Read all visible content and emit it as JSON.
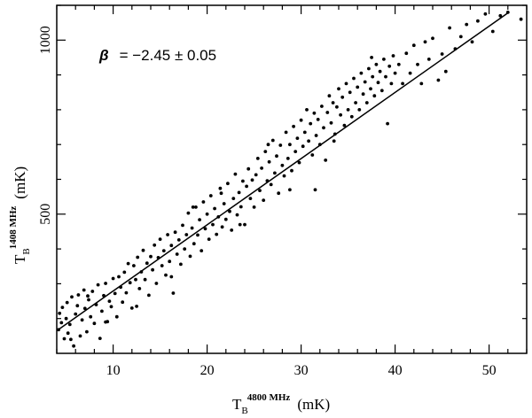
{
  "chart_data": {
    "type": "scatter",
    "xlim": [
      4,
      54
    ],
    "ylim": [
      100,
      1100
    ],
    "xticks": [
      10,
      20,
      30,
      40,
      50
    ],
    "yticks": [
      500,
      1000
    ],
    "xlabel": {
      "base": "T",
      "sub": "B",
      "sup": "4800 MHz",
      "unit": "(mK)"
    },
    "ylabel": {
      "base": "T",
      "sub": "B",
      "sup": "1408 MHz",
      "unit": "(mK)"
    },
    "annotation": {
      "symbol": "β",
      "text": "= −2.45 ± 0.05"
    },
    "fit_line": {
      "x": [
        4,
        52
      ],
      "y": [
        165,
        1078
      ]
    },
    "grid": false,
    "legend": "none",
    "series": [
      {
        "points": [
          [
            4.2,
            168
          ],
          [
            4.3,
            215
          ],
          [
            4.5,
            188
          ],
          [
            4.6,
            232
          ],
          [
            4.8,
            142
          ],
          [
            5.0,
            200
          ],
          [
            5.1,
            246
          ],
          [
            5.2,
            158
          ],
          [
            5.4,
            183
          ],
          [
            5.6,
            262
          ],
          [
            5.8,
            121
          ],
          [
            6.0,
            213
          ],
          [
            6.2,
            237
          ],
          [
            6.3,
            268
          ],
          [
            6.5,
            150
          ],
          [
            6.7,
            196
          ],
          [
            6.9,
            282
          ],
          [
            7.0,
            229
          ],
          [
            7.2,
            162
          ],
          [
            7.4,
            254
          ],
          [
            7.6,
            205
          ],
          [
            7.8,
            278
          ],
          [
            8.0,
            186
          ],
          [
            8.2,
            240
          ],
          [
            8.4,
            297
          ],
          [
            8.6,
            143
          ],
          [
            8.8,
            221
          ],
          [
            9.0,
            266
          ],
          [
            9.2,
            301
          ],
          [
            9.4,
            191
          ],
          [
            9.6,
            250
          ],
          [
            9.8,
            234
          ],
          [
            10.0,
            315
          ],
          [
            10.2,
            272
          ],
          [
            10.4,
            205
          ],
          [
            10.6,
            320
          ],
          [
            10.8,
            290
          ],
          [
            11.0,
            247
          ],
          [
            11.2,
            333
          ],
          [
            11.4,
            274
          ],
          [
            11.6,
            358
          ],
          [
            11.8,
            303
          ],
          [
            12.0,
            230
          ],
          [
            12.2,
            352
          ],
          [
            12.4,
            312
          ],
          [
            12.6,
            376
          ],
          [
            12.8,
            286
          ],
          [
            13.0,
            334
          ],
          [
            13.2,
            396
          ],
          [
            13.4,
            312
          ],
          [
            13.6,
            359
          ],
          [
            13.8,
            267
          ],
          [
            14.0,
            378
          ],
          [
            14.2,
            340
          ],
          [
            14.4,
            411
          ],
          [
            14.6,
            301
          ],
          [
            14.8,
            375
          ],
          [
            15.0,
            428
          ],
          [
            15.2,
            352
          ],
          [
            15.4,
            395
          ],
          [
            15.6,
            325
          ],
          [
            15.8,
            441
          ],
          [
            16.0,
            364
          ],
          [
            16.2,
            410
          ],
          [
            16.4,
            273
          ],
          [
            16.6,
            448
          ],
          [
            16.8,
            385
          ],
          [
            17.0,
            426
          ],
          [
            17.2,
            356
          ],
          [
            17.4,
            468
          ],
          [
            17.6,
            400
          ],
          [
            17.8,
            441
          ],
          [
            18.0,
            503
          ],
          [
            18.2,
            379
          ],
          [
            18.4,
            460
          ],
          [
            18.6,
            415
          ],
          [
            18.8,
            520
          ],
          [
            19.0,
            440
          ],
          [
            19.2,
            484
          ],
          [
            19.4,
            395
          ],
          [
            19.6,
            535
          ],
          [
            19.8,
            458
          ],
          [
            20.0,
            500
          ],
          [
            20.2,
            428
          ],
          [
            20.4,
            553
          ],
          [
            20.6,
            470
          ],
          [
            20.8,
            516
          ],
          [
            21.0,
            442
          ],
          [
            21.2,
            492
          ],
          [
            21.4,
            574
          ],
          [
            21.6,
            463
          ],
          [
            21.8,
            530
          ],
          [
            22.0,
            485
          ],
          [
            22.2,
            588
          ],
          [
            22.4,
            508
          ],
          [
            22.6,
            454
          ],
          [
            22.8,
            545
          ],
          [
            23.0,
            615
          ],
          [
            23.2,
            498
          ],
          [
            23.4,
            562
          ],
          [
            23.6,
            521
          ],
          [
            23.8,
            595
          ],
          [
            24.0,
            470
          ],
          [
            24.2,
            580
          ],
          [
            24.4,
            630
          ],
          [
            24.6,
            545
          ],
          [
            24.8,
            598
          ],
          [
            25.0,
            520
          ],
          [
            25.2,
            613
          ],
          [
            25.4,
            660
          ],
          [
            25.6,
            568
          ],
          [
            25.8,
            632
          ],
          [
            26.0,
            540
          ],
          [
            26.2,
            680
          ],
          [
            26.4,
            596
          ],
          [
            26.6,
            650
          ],
          [
            26.8,
            585
          ],
          [
            27.0,
            712
          ],
          [
            27.2,
            618
          ],
          [
            27.4,
            667
          ],
          [
            27.6,
            560
          ],
          [
            27.8,
            698
          ],
          [
            28.0,
            640
          ],
          [
            28.2,
            610
          ],
          [
            28.4,
            735
          ],
          [
            28.6,
            660
          ],
          [
            28.8,
            700
          ],
          [
            29.0,
            625
          ],
          [
            29.2,
            752
          ],
          [
            29.4,
            680
          ],
          [
            29.6,
            718
          ],
          [
            29.8,
            648
          ],
          [
            30.0,
            770
          ],
          [
            30.2,
            695
          ],
          [
            30.4,
            735
          ],
          [
            30.6,
            800
          ],
          [
            30.8,
            710
          ],
          [
            31.0,
            760
          ],
          [
            31.2,
            670
          ],
          [
            31.4,
            790
          ],
          [
            31.6,
            726
          ],
          [
            31.8,
            772
          ],
          [
            32.0,
            700
          ],
          [
            32.2,
            810
          ],
          [
            32.4,
            748
          ],
          [
            32.6,
            655
          ],
          [
            32.8,
            792
          ],
          [
            33.0,
            840
          ],
          [
            33.2,
            762
          ],
          [
            33.4,
            820
          ],
          [
            33.6,
            730
          ],
          [
            33.8,
            808
          ],
          [
            34.0,
            860
          ],
          [
            34.2,
            785
          ],
          [
            34.4,
            836
          ],
          [
            34.6,
            755
          ],
          [
            34.8,
            875
          ],
          [
            35.0,
            800
          ],
          [
            35.2,
            850
          ],
          [
            35.4,
            780
          ],
          [
            35.6,
            890
          ],
          [
            35.8,
            820
          ],
          [
            36.0,
            865
          ],
          [
            36.2,
            800
          ],
          [
            36.4,
            905
          ],
          [
            36.6,
            845
          ],
          [
            36.8,
            880
          ],
          [
            37.0,
            820
          ],
          [
            37.2,
            918
          ],
          [
            37.4,
            860
          ],
          [
            37.6,
            895
          ],
          [
            37.8,
            840
          ],
          [
            38.0,
            930
          ],
          [
            38.2,
            878
          ],
          [
            38.4,
            910
          ],
          [
            38.6,
            855
          ],
          [
            38.8,
            945
          ],
          [
            39.0,
            895
          ],
          [
            39.2,
            760
          ],
          [
            39.4,
            925
          ],
          [
            39.6,
            875
          ],
          [
            39.8,
            955
          ],
          [
            40.0,
            905
          ],
          [
            40.4,
            930
          ],
          [
            40.8,
            875
          ],
          [
            41.2,
            962
          ],
          [
            41.6,
            905
          ],
          [
            42.0,
            985
          ],
          [
            42.4,
            930
          ],
          [
            42.8,
            875
          ],
          [
            43.2,
            995
          ],
          [
            43.6,
            945
          ],
          [
            44.0,
            1005
          ],
          [
            44.6,
            885
          ],
          [
            45.0,
            960
          ],
          [
            45.4,
            910
          ],
          [
            45.8,
            1035
          ],
          [
            46.4,
            975
          ],
          [
            47.0,
            1010
          ],
          [
            47.6,
            1045
          ],
          [
            48.2,
            995
          ],
          [
            48.8,
            1055
          ],
          [
            49.6,
            1075
          ],
          [
            50.4,
            1025
          ],
          [
            51.2,
            1070
          ],
          [
            52.0,
            1080
          ],
          [
            53.4,
            1060
          ],
          [
            23.5,
            470
          ],
          [
            18.5,
            520
          ],
          [
            12.5,
            235
          ],
          [
            9.2,
            190
          ],
          [
            5.5,
            140
          ],
          [
            28.8,
            570
          ],
          [
            33.5,
            710
          ],
          [
            26.5,
            700
          ],
          [
            31.5,
            570
          ],
          [
            37.5,
            950
          ],
          [
            21.5,
            560
          ],
          [
            16.2,
            320
          ],
          [
            7.3,
            265
          ]
        ]
      }
    ]
  }
}
